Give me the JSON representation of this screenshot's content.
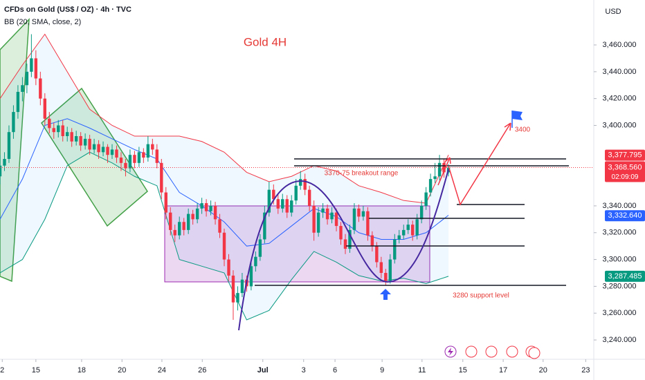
{
  "chart_data": {
    "type": "candlestick",
    "header": "CFDs on Gold (US$ / OZ) · 4h · TVC",
    "indicator": "BB (20, SMA, close, 2)",
    "currency": "USD",
    "title": "Gold 4H",
    "annotations": [
      "3370-75 breakout range",
      "3280 support level",
      "3400"
    ],
    "up_color": "#089981",
    "down_color": "#f23645",
    "candles": [
      [
        3362,
        3378,
        3356,
        3370
      ],
      [
        3370,
        3380,
        3366,
        3375
      ],
      [
        3375,
        3400,
        3372,
        3395
      ],
      [
        3395,
        3415,
        3390,
        3410
      ],
      [
        3410,
        3430,
        3405,
        3425
      ],
      [
        3425,
        3436,
        3418,
        3430
      ],
      [
        3430,
        3446,
        3424,
        3440
      ],
      [
        3440,
        3468,
        3436,
        3450
      ],
      [
        3450,
        3456,
        3430,
        3435
      ],
      [
        3435,
        3440,
        3415,
        3420
      ],
      [
        3420,
        3424,
        3400,
        3405
      ],
      [
        3405,
        3410,
        3394,
        3398
      ],
      [
        3398,
        3402,
        3390,
        3395
      ],
      [
        3395,
        3404,
        3391,
        3400
      ],
      [
        3400,
        3404,
        3388,
        3392
      ],
      [
        3392,
        3399,
        3388,
        3395
      ],
      [
        3395,
        3398,
        3384,
        3388
      ],
      [
        3388,
        3396,
        3385,
        3392
      ],
      [
        3392,
        3395,
        3381,
        3385
      ],
      [
        3385,
        3394,
        3382,
        3390
      ],
      [
        3390,
        3393,
        3378,
        3382
      ],
      [
        3382,
        3390,
        3379,
        3386
      ],
      [
        3386,
        3389,
        3375,
        3380
      ],
      [
        3380,
        3388,
        3377,
        3384
      ],
      [
        3384,
        3386,
        3372,
        3378
      ],
      [
        3378,
        3386,
        3375,
        3382
      ],
      [
        3382,
        3385,
        3372,
        3376
      ],
      [
        3376,
        3380,
        3366,
        3372
      ],
      [
        3372,
        3375,
        3362,
        3368
      ],
      [
        3368,
        3382,
        3365,
        3378
      ],
      [
        3378,
        3381,
        3368,
        3372
      ],
      [
        3372,
        3384,
        3369,
        3380
      ],
      [
        3380,
        3383,
        3372,
        3376
      ],
      [
        3376,
        3392,
        3373,
        3386
      ],
      [
        3386,
        3390,
        3378,
        3382
      ],
      [
        3382,
        3386,
        3368,
        3372
      ],
      [
        3372,
        3375,
        3345,
        3350
      ],
      [
        3350,
        3354,
        3330,
        3335
      ],
      [
        3335,
        3339,
        3318,
        3322
      ],
      [
        3322,
        3326,
        3313,
        3318
      ],
      [
        3318,
        3332,
        3315,
        3328
      ],
      [
        3328,
        3331,
        3318,
        3322
      ],
      [
        3322,
        3338,
        3319,
        3334
      ],
      [
        3334,
        3337,
        3326,
        3330
      ],
      [
        3330,
        3342,
        3327,
        3338
      ],
      [
        3338,
        3346,
        3334,
        3342
      ],
      [
        3342,
        3345,
        3332,
        3336
      ],
      [
        3336,
        3344,
        3333,
        3340
      ],
      [
        3340,
        3343,
        3326,
        3330
      ],
      [
        3330,
        3334,
        3316,
        3320
      ],
      [
        3320,
        3323,
        3295,
        3300
      ],
      [
        3300,
        3304,
        3284,
        3288
      ],
      [
        3288,
        3292,
        3255,
        3268
      ],
      [
        3268,
        3280,
        3262,
        3275
      ],
      [
        3275,
        3290,
        3272,
        3285
      ],
      [
        3285,
        3288,
        3276,
        3280
      ],
      [
        3280,
        3299,
        3277,
        3295
      ],
      [
        3295,
        3306,
        3291,
        3302
      ],
      [
        3302,
        3319,
        3299,
        3315
      ],
      [
        3315,
        3340,
        3312,
        3335
      ],
      [
        3335,
        3358,
        3332,
        3352
      ],
      [
        3352,
        3356,
        3341,
        3345
      ],
      [
        3345,
        3349,
        3334,
        3338
      ],
      [
        3338,
        3349,
        3335,
        3345
      ],
      [
        3345,
        3348,
        3331,
        3335
      ],
      [
        3335,
        3348,
        3332,
        3344
      ],
      [
        3344,
        3360,
        3341,
        3355
      ],
      [
        3355,
        3366,
        3352,
        3360
      ],
      [
        3360,
        3364,
        3348,
        3352
      ],
      [
        3352,
        3355,
        3336,
        3340
      ],
      [
        3340,
        3344,
        3314,
        3320
      ],
      [
        3320,
        3339,
        3317,
        3335
      ],
      [
        3335,
        3342,
        3331,
        3338
      ],
      [
        3338,
        3341,
        3326,
        3330
      ],
      [
        3330,
        3339,
        3327,
        3335
      ],
      [
        3335,
        3338,
        3321,
        3325
      ],
      [
        3325,
        3328,
        3311,
        3315
      ],
      [
        3315,
        3319,
        3304,
        3308
      ],
      [
        3308,
        3326,
        3305,
        3322
      ],
      [
        3322,
        3342,
        3319,
        3338
      ],
      [
        3338,
        3341,
        3328,
        3332
      ],
      [
        3332,
        3340,
        3329,
        3336
      ],
      [
        3336,
        3339,
        3314,
        3318
      ],
      [
        3318,
        3321,
        3306,
        3310
      ],
      [
        3310,
        3313,
        3294,
        3298
      ],
      [
        3298,
        3302,
        3286,
        3290
      ],
      [
        3290,
        3293,
        3281,
        3284
      ],
      [
        3284,
        3304,
        3282,
        3300
      ],
      [
        3300,
        3319,
        3297,
        3315
      ],
      [
        3315,
        3322,
        3312,
        3318
      ],
      [
        3318,
        3326,
        3315,
        3322
      ],
      [
        3322,
        3330,
        3319,
        3326
      ],
      [
        3326,
        3329,
        3314,
        3318
      ],
      [
        3318,
        3334,
        3315,
        3330
      ],
      [
        3330,
        3344,
        3327,
        3340
      ],
      [
        3340,
        3354,
        3337,
        3350
      ],
      [
        3350,
        3364,
        3347,
        3360
      ],
      [
        3360,
        3372,
        3357,
        3362
      ],
      [
        3362,
        3378,
        3359,
        3372
      ],
      [
        3372,
        3375,
        3361,
        3365
      ],
      [
        3365,
        3371,
        3362,
        3368.56
      ]
    ],
    "bands": {
      "x": [
        0,
        5,
        10,
        15,
        20,
        25,
        30,
        35,
        40,
        45,
        50,
        55,
        60,
        65,
        70,
        75,
        80,
        85,
        90,
        95,
        100
      ],
      "upper": [
        3420,
        3445,
        3468,
        3440,
        3412,
        3400,
        3392,
        3392,
        3392,
        3388,
        3380,
        3365,
        3358,
        3362,
        3370,
        3366,
        3355,
        3350,
        3344,
        3342,
        3378
      ],
      "basis": [
        3330,
        3360,
        3400,
        3405,
        3398,
        3390,
        3382,
        3375,
        3350,
        3340,
        3328,
        3310,
        3312,
        3325,
        3338,
        3332,
        3320,
        3315,
        3315,
        3320,
        3333
      ],
      "lower": [
        3290,
        3300,
        3330,
        3370,
        3380,
        3372,
        3362,
        3355,
        3300,
        3295,
        3290,
        3255,
        3262,
        3285,
        3306,
        3298,
        3288,
        3284,
        3286,
        3282,
        3287.5
      ],
      "upper_color": "#f23645",
      "basis_color": "#2962ff",
      "lower_color": "#089981"
    },
    "price_labels": [
      {
        "value": 3377.795,
        "label": "3,377.795",
        "color": "#f23645"
      },
      {
        "value": 3368.56,
        "label": "3,368.560",
        "color": "#f23645",
        "countdown": "02:09:09"
      },
      {
        "value": 3332.64,
        "label": "3,332.640",
        "color": "#2962ff"
      },
      {
        "value": 3287.485,
        "label": "3,287.485",
        "color": "#089981"
      }
    ],
    "xlim": [
      0,
      132.4
    ],
    "xticks": [
      {
        "value": 0.5,
        "label": "2"
      },
      {
        "value": 8,
        "label": "15"
      },
      {
        "value": 18.2,
        "label": "18"
      },
      {
        "value": 27.2,
        "label": "20"
      },
      {
        "value": 36.1,
        "label": "24"
      },
      {
        "value": 45.1,
        "label": "26"
      },
      {
        "value": 58.6,
        "label": "Jul"
      },
      {
        "value": 67.7,
        "label": "3"
      },
      {
        "value": 74.7,
        "label": "6"
      },
      {
        "value": 85.2,
        "label": "9"
      },
      {
        "value": 94.1,
        "label": "11"
      },
      {
        "value": 103.2,
        "label": "15"
      },
      {
        "value": 112.2,
        "label": "17"
      },
      {
        "value": 121.1,
        "label": "20"
      },
      {
        "value": 130.6,
        "label": "23"
      }
    ],
    "ylim": [
      3225.6,
      3493.5
    ],
    "yticks": [
      {
        "value": 3240,
        "label": "3,240.000"
      },
      {
        "value": 3260,
        "label": "3,260.000"
      },
      {
        "value": 3280,
        "label": "3,280.000"
      },
      {
        "value": 3300,
        "label": "3,300.000"
      },
      {
        "value": 3320,
        "label": "3,320.000"
      },
      {
        "value": 3340,
        "label": "3,340.000"
      },
      {
        "value": 3400,
        "label": "3,400.000"
      },
      {
        "value": 3420,
        "label": "3,420.000"
      },
      {
        "value": 3440,
        "label": "3,440.000"
      },
      {
        "value": 3460,
        "label": "3,460.000"
      }
    ]
  }
}
